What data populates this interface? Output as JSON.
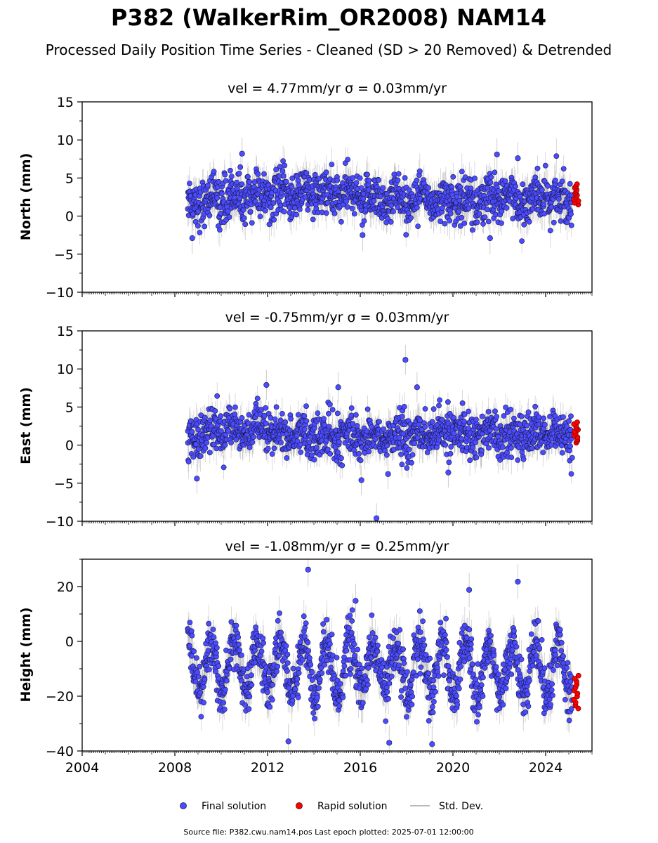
{
  "figure": {
    "title": "P382 (WalkerRim_OR2008) NAM14",
    "subtitle": "Processed Daily Position Time Series - Cleaned (SD > 20 Removed) & Detrended",
    "source_note": "Source file: P382.cwu.nam14.pos  Last epoch plotted: 2025-07-01 12:00:00",
    "legend": [
      {
        "label": "Final solution",
        "color": "#4b4bff",
        "kind": "marker"
      },
      {
        "label": "Rapid solution",
        "color": "#ff0000",
        "kind": "marker"
      },
      {
        "label": "Std. Dev.",
        "color": "#bbbbbb",
        "kind": "line"
      }
    ],
    "colors": {
      "final": "#4b4bff",
      "rapid": "#ff0000",
      "errorbar": "#9a9a9a",
      "edge": "#1a1a4a"
    }
  },
  "chart_data": [
    {
      "type": "scatter",
      "title": "vel = 4.77mm/yr   σ = 0.03mm/yr",
      "ylabel": "North (mm)",
      "xlim": [
        2004,
        2026
      ],
      "ylim": [
        -10,
        15
      ],
      "yticks": [
        -10,
        -5,
        0,
        5,
        10,
        15
      ],
      "xticks": [],
      "final": {
        "x_range": [
          2008.55,
          2025.15
        ],
        "mean": 2.3,
        "sd": 1.5,
        "mean_drift": [
          {
            "x": 2008.55,
            "y": 1.9
          },
          {
            "x": 2011,
            "y": 2.6
          },
          {
            "x": 2014.5,
            "y": 3.0
          },
          {
            "x": 2017,
            "y": 2.3
          },
          {
            "x": 2021,
            "y": 2.1
          },
          {
            "x": 2025.15,
            "y": 2.4
          }
        ],
        "seasonal_amp": 0.6,
        "outliers": [
          {
            "x": 2010.9,
            "y": 8.2
          },
          {
            "x": 2021.9,
            "y": 8.1
          },
          {
            "x": 2022.8,
            "y": 7.6
          },
          {
            "x": 2008.75,
            "y": -2.9
          },
          {
            "x": 2021.6,
            "y": -2.9
          },
          {
            "x": 2016.1,
            "y": -2.5
          }
        ]
      },
      "rapid": {
        "x_range": [
          2025.2,
          2025.42
        ],
        "y_range": [
          1.5,
          4.2
        ]
      }
    },
    {
      "type": "scatter",
      "title": "vel = -0.75mm/yr   σ = 0.03mm/yr",
      "ylabel": "East (mm)",
      "xlim": [
        2004,
        2026
      ],
      "ylim": [
        -10,
        15
      ],
      "yticks": [
        -10,
        -5,
        0,
        5,
        10,
        15
      ],
      "xticks": [],
      "final": {
        "x_range": [
          2008.55,
          2025.15
        ],
        "mean": 1.3,
        "sd": 1.4,
        "mean_drift": [
          {
            "x": 2008.55,
            "y": 0.9
          },
          {
            "x": 2010.5,
            "y": 2.2
          },
          {
            "x": 2013,
            "y": 1.3
          },
          {
            "x": 2017,
            "y": 1.0
          },
          {
            "x": 2021,
            "y": 1.8
          },
          {
            "x": 2025.15,
            "y": 1.0
          }
        ],
        "seasonal_amp": 0.5,
        "outliers": [
          {
            "x": 2017.95,
            "y": 11.2
          },
          {
            "x": 2011.95,
            "y": 7.9
          },
          {
            "x": 2015.05,
            "y": 7.6
          },
          {
            "x": 2018.45,
            "y": 7.6
          },
          {
            "x": 2016.7,
            "y": -9.6
          },
          {
            "x": 2016.05,
            "y": -4.6
          },
          {
            "x": 2008.95,
            "y": -4.4
          },
          {
            "x": 2017.2,
            "y": -3.8
          },
          {
            "x": 2019.8,
            "y": -3.6
          }
        ]
      },
      "rapid": {
        "x_range": [
          2025.2,
          2025.42
        ],
        "y_range": [
          0.3,
          3.0
        ]
      }
    },
    {
      "type": "scatter",
      "title": "vel = -1.08mm/yr   σ = 0.25mm/yr",
      "ylabel": "Height (mm)",
      "xlim": [
        2004,
        2026
      ],
      "ylim": [
        -40,
        30
      ],
      "yticks": [
        -40,
        -20,
        0,
        20
      ],
      "xticks": [
        2004,
        2008,
        2012,
        2016,
        2020,
        2024
      ],
      "final": {
        "x_range": [
          2008.55,
          2025.15
        ],
        "mean": -9,
        "sd": 4.5,
        "mean_drift": [
          {
            "x": 2008.55,
            "y": -9
          },
          {
            "x": 2025.15,
            "y": -10
          }
        ],
        "seasonal_amp": 9.5,
        "outliers": [
          {
            "x": 2013.75,
            "y": 26.2
          },
          {
            "x": 2022.8,
            "y": 21.8
          },
          {
            "x": 2020.7,
            "y": 18.8
          },
          {
            "x": 2015.8,
            "y": 14.8
          },
          {
            "x": 2012.9,
            "y": -36.5
          },
          {
            "x": 2019.1,
            "y": -37.5
          },
          {
            "x": 2017.25,
            "y": -37
          }
        ]
      },
      "rapid": {
        "x_range": [
          2025.2,
          2025.42
        ],
        "y_range": [
          -24.5,
          -12.5
        ]
      }
    }
  ]
}
